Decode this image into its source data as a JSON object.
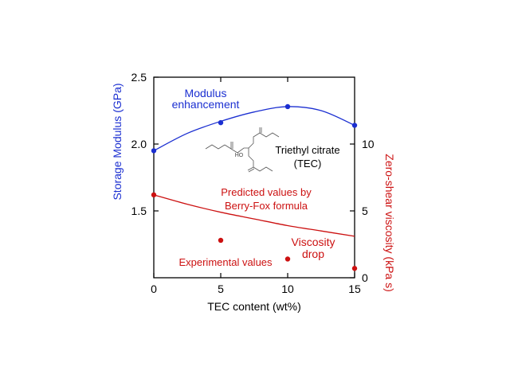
{
  "chart_data": {
    "type": "line",
    "x": [
      0,
      5,
      10,
      15
    ],
    "xlim": [
      0,
      15
    ],
    "xticks": [
      "0",
      "5",
      "10",
      "15"
    ],
    "xlabel": "TEC content (wt%)",
    "ylabel_left": "Storage Modulus (GPa)",
    "ylim_left": [
      1.0,
      2.5
    ],
    "yticks_left": [
      "1.5",
      "2.0",
      "2.5"
    ],
    "ylabel_right": "Zero-shear viscosity (kPa s)",
    "ylim_right": [
      0,
      15
    ],
    "yticks_right": [
      "0",
      "5",
      "10"
    ],
    "series": [
      {
        "role": "storage-modulus-measured",
        "axis": "left",
        "color": "#1b2fd1",
        "style": "points",
        "x": [
          0,
          5,
          10,
          15
        ],
        "y": [
          1.95,
          2.16,
          2.28,
          2.14
        ]
      },
      {
        "role": "storage-modulus-fit",
        "axis": "left",
        "color": "#1b2fd1",
        "style": "smooth-line",
        "x": [
          0,
          2.5,
          5,
          7.5,
          10,
          12.5,
          15
        ],
        "y": [
          1.95,
          2.08,
          2.17,
          2.24,
          2.28,
          2.25,
          2.14
        ]
      },
      {
        "name": "Predicted values by Berry-Fox formula",
        "axis": "right",
        "color": "#cc1111",
        "style": "line",
        "x": [
          0,
          2.5,
          5,
          7.5,
          10,
          12.5,
          15
        ],
        "y": [
          6.2,
          5.5,
          4.9,
          4.4,
          3.9,
          3.5,
          3.1
        ]
      },
      {
        "name": "Experimental values",
        "axis": "right",
        "color": "#cc1111",
        "style": "points",
        "x": [
          0,
          5,
          10,
          15
        ],
        "y": [
          6.2,
          2.8,
          1.4,
          0.7
        ]
      }
    ],
    "annotations": {
      "modulus": [
        "Modulus",
        "enhancement"
      ],
      "viscosity": [
        "Viscosity",
        "drop"
      ],
      "predicted": [
        "Predicted values by",
        "Berry-Fox formula"
      ],
      "experimental": "Experimental values",
      "molecule": [
        "Triethyl citrate",
        "(TEC)"
      ],
      "molecule_atom": "HO"
    },
    "colors": {
      "left_axis": "#1b2fd1",
      "right_axis": "#cc1111",
      "frame": "#000000"
    },
    "grid": false
  }
}
